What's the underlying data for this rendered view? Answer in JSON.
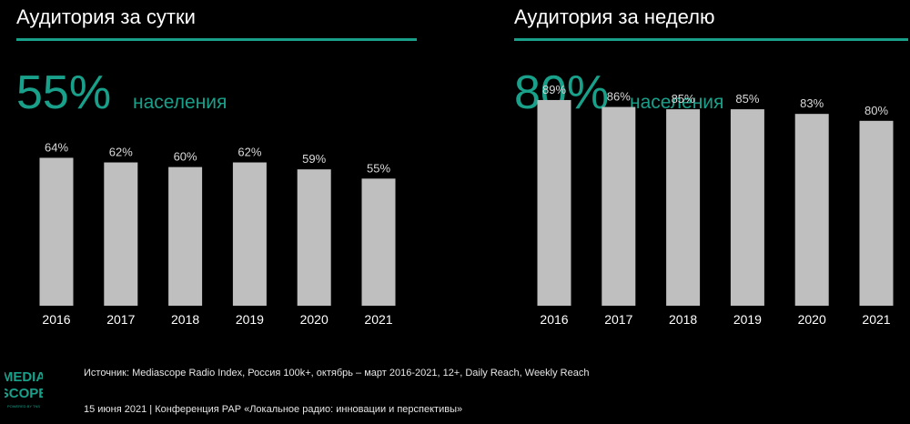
{
  "left_panel": {
    "title": "Аудитория за сутки",
    "big_value": "55%",
    "big_sub": "населения"
  },
  "right_panel": {
    "title": "Аудитория за неделю",
    "big_value": "80%",
    "big_sub": "населения"
  },
  "colors": {
    "accent": "#19a08a",
    "bar": "#bfbfbf",
    "background": "#000000"
  },
  "logo": {
    "text": "MEDIA SCOPE",
    "subtitle": "POWERED BY TNS"
  },
  "source": "Источник: Mediascope Radio Index, Россия 100k+, октябрь – март 2016-2021, 12+, Daily Reach, Weekly Reach",
  "footer": "15 июня 2021 | Конференция РАР «Локальное радио: инновации и перспективы»",
  "chart_data": [
    {
      "type": "bar",
      "title": "Аудитория за сутки",
      "categories": [
        "2016",
        "2017",
        "2018",
        "2019",
        "2020",
        "2021"
      ],
      "values": [
        64,
        62,
        60,
        62,
        59,
        55
      ],
      "value_labels": [
        "64%",
        "62%",
        "60%",
        "62%",
        "59%",
        "55%"
      ],
      "ylim": [
        0,
        100
      ],
      "grid": false
    },
    {
      "type": "bar",
      "title": "Аудитория за неделю",
      "categories": [
        "2016",
        "2017",
        "2018",
        "2019",
        "2020",
        "2021"
      ],
      "values": [
        89,
        86,
        85,
        85,
        83,
        80
      ],
      "value_labels": [
        "89%",
        "86%",
        "85%",
        "85%",
        "83%",
        "80%"
      ],
      "ylim": [
        0,
        100
      ],
      "grid": false
    }
  ]
}
